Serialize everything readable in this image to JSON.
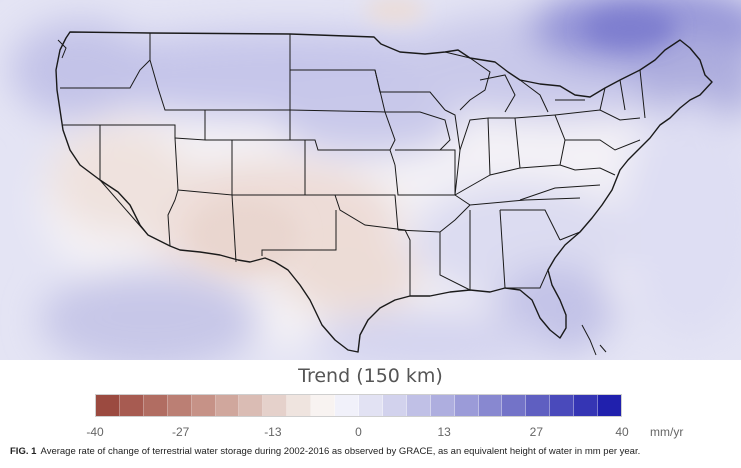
{
  "map": {
    "region": "Contiguous United States",
    "state_outline_color": "#222222",
    "field_colors": {
      "strong_positive": "#8f8fd6",
      "positive": "#b3b3e3",
      "weak_positive": "#dcdcf2",
      "neutral": "#f6f4f6",
      "weak_negative": "#eee2de",
      "negative": "#e6d2cb"
    }
  },
  "legend": {
    "title": "Trend (150 km)",
    "unit": "mm/yr",
    "ticks": [
      "-40",
      "-27",
      "-13",
      "0",
      "13",
      "27",
      "40"
    ],
    "range": [
      -40,
      40
    ],
    "colors": [
      "#9b4a40",
      "#a75b51",
      "#b16d62",
      "#bb7f74",
      "#c69287",
      "#d0a79d",
      "#dabcb4",
      "#e5d1cb",
      "#efe4df",
      "#f8f3f1",
      "#f1f1fa",
      "#e2e2f3",
      "#d2d2ed",
      "#c0c0e6",
      "#aeaedf",
      "#9b9bd8",
      "#8888d0",
      "#7373c8",
      "#5f5fc1",
      "#4a4abb",
      "#3535b4",
      "#2020ad"
    ]
  },
  "caption": {
    "label": "FIG. 1",
    "text": "Average rate of change of terrestrial water storage during 2002-2016 as observed by GRACE, as an equivalent height of water in mm per year."
  }
}
